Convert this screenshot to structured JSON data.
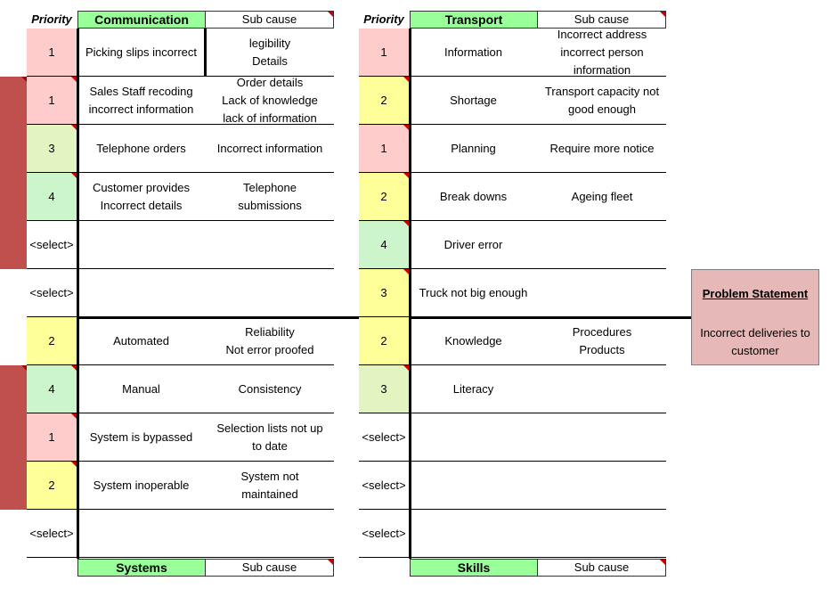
{
  "colors": {
    "pink": "#ffcccc",
    "yellow": "#ffff99",
    "lightgreen": "#e2f5c0",
    "green": "#ccf5cc",
    "white": "#ffffff",
    "category": "#99ff99",
    "problem": "#e6b8b7",
    "redbar": "#c0504d"
  },
  "labels": {
    "priority": "Priority",
    "sub_cause": "Sub cause"
  },
  "communication": {
    "title": "Communication",
    "rows": [
      {
        "priority": "1",
        "cause": "Picking slips incorrect",
        "sub": "legibility\nDetails",
        "color": "#ffcccc"
      },
      {
        "priority": "1",
        "cause": "Sales Staff recoding\nincorrect information",
        "sub": "Order details\nLack of knowledge\nlack of information",
        "color": "#ffcccc"
      },
      {
        "priority": "3",
        "cause": "Telephone orders",
        "sub": "Incorrect information",
        "color": "#e2f5c0"
      },
      {
        "priority": "4",
        "cause": "Customer provides\nIncorrect details",
        "sub": "Telephone\nsubmissions",
        "color": "#ccf5cc"
      },
      {
        "priority": "<select>",
        "cause": "",
        "sub": "",
        "color": "#ffffff"
      },
      {
        "priority": "<select>",
        "cause": "",
        "sub": "",
        "color": "#ffffff"
      }
    ]
  },
  "transport": {
    "title": "Transport",
    "rows": [
      {
        "priority": "1",
        "cause": "Information",
        "sub": "Incorrect address\nincorrect person\ninformation",
        "color": "#ffcccc"
      },
      {
        "priority": "2",
        "cause": "Shortage",
        "sub": "Transport capacity not\ngood enough",
        "color": "#ffff99"
      },
      {
        "priority": "1",
        "cause": "Planning",
        "sub": "Require more notice",
        "color": "#ffcccc"
      },
      {
        "priority": "2",
        "cause": "Break downs",
        "sub": "Ageing fleet",
        "color": "#ffff99"
      },
      {
        "priority": "4",
        "cause": "Driver error",
        "sub": "",
        "color": "#ccf5cc"
      },
      {
        "priority": "3",
        "cause": "Truck not big enough",
        "sub": "",
        "color": "#ffff99"
      }
    ]
  },
  "systems": {
    "title": "Systems",
    "rows": [
      {
        "priority": "2",
        "cause": "Automated",
        "sub": "Reliability\nNot error proofed",
        "color": "#ffff99"
      },
      {
        "priority": "4",
        "cause": "Manual",
        "sub": "Consistency",
        "color": "#ccf5cc"
      },
      {
        "priority": "1",
        "cause": "System is bypassed",
        "sub": "Selection lists not up\nto date",
        "color": "#ffcccc"
      },
      {
        "priority": "2",
        "cause": "System inoperable",
        "sub": "System not\nmaintained",
        "color": "#ffff99"
      },
      {
        "priority": "<select>",
        "cause": "",
        "sub": "",
        "color": "#ffffff"
      }
    ]
  },
  "skills": {
    "title": "Skills",
    "rows": [
      {
        "priority": "2",
        "cause": "Knowledge",
        "sub": "Procedures\nProducts",
        "color": "#ffff99"
      },
      {
        "priority": "3",
        "cause": "Literacy",
        "sub": "",
        "color": "#e2f5c0"
      },
      {
        "priority": "<select>",
        "cause": "",
        "sub": "",
        "color": "#ffffff"
      },
      {
        "priority": "<select>",
        "cause": "",
        "sub": "",
        "color": "#ffffff"
      },
      {
        "priority": "<select>",
        "cause": "",
        "sub": "",
        "color": "#ffffff"
      }
    ]
  },
  "problem": {
    "heading": "Problem Statement",
    "text": "Incorrect deliveries to\ncustomer"
  }
}
